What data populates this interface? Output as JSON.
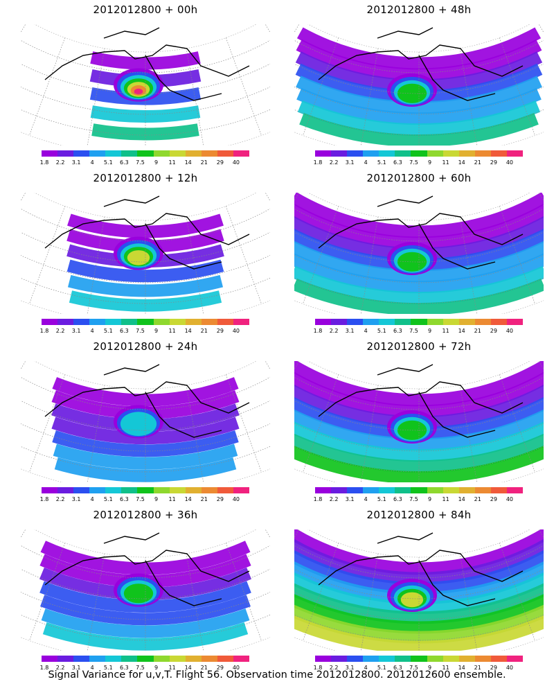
{
  "panels": [
    {
      "title": "2012012800 + 00h",
      "col": 0,
      "row": 0,
      "spread": 0.35,
      "center": 0.45,
      "peak": 1.0
    },
    {
      "title": "2012012800 + 12h",
      "col": 0,
      "row": 1,
      "spread": 0.5,
      "center": 0.45,
      "peak": 0.7
    },
    {
      "title": "2012012800 + 24h",
      "col": 0,
      "row": 2,
      "spread": 0.6,
      "center": 0.45,
      "peak": 0.45
    },
    {
      "title": "2012012800 + 36h",
      "col": 0,
      "row": 3,
      "spread": 0.68,
      "center": 0.45,
      "peak": 0.5
    },
    {
      "title": "2012012800 + 48h",
      "col": 1,
      "row": 0,
      "spread": 0.8,
      "center": 0.5,
      "peak": 0.55
    },
    {
      "title": "2012012800 + 60h",
      "col": 1,
      "row": 1,
      "spread": 0.85,
      "center": 0.5,
      "peak": 0.55
    },
    {
      "title": "2012012800 + 72h",
      "col": 1,
      "row": 2,
      "spread": 0.9,
      "center": 0.5,
      "peak": 0.62
    },
    {
      "title": "2012012800 + 84h",
      "col": 1,
      "row": 3,
      "spread": 0.95,
      "center": 0.5,
      "peak": 0.72
    }
  ],
  "colorbar": {
    "colors": [
      "#9900dd",
      "#6a1ce0",
      "#2b4ff0",
      "#1fa0f0",
      "#14c7d6",
      "#10c08a",
      "#10c31c",
      "#8fd82e",
      "#c9d834",
      "#e1b030",
      "#ec8a32",
      "#f05a3a",
      "#f0227e"
    ],
    "labels": [
      "1.8",
      "2.2",
      "3.1",
      "4",
      "5.1",
      "6.3",
      "7.5",
      "9",
      "11",
      "14",
      "21",
      "29",
      "40"
    ]
  },
  "footer": "Signal Variance for u,v,T. Flight 56. Observation time 2012012800. 2012012600 ensemble."
}
